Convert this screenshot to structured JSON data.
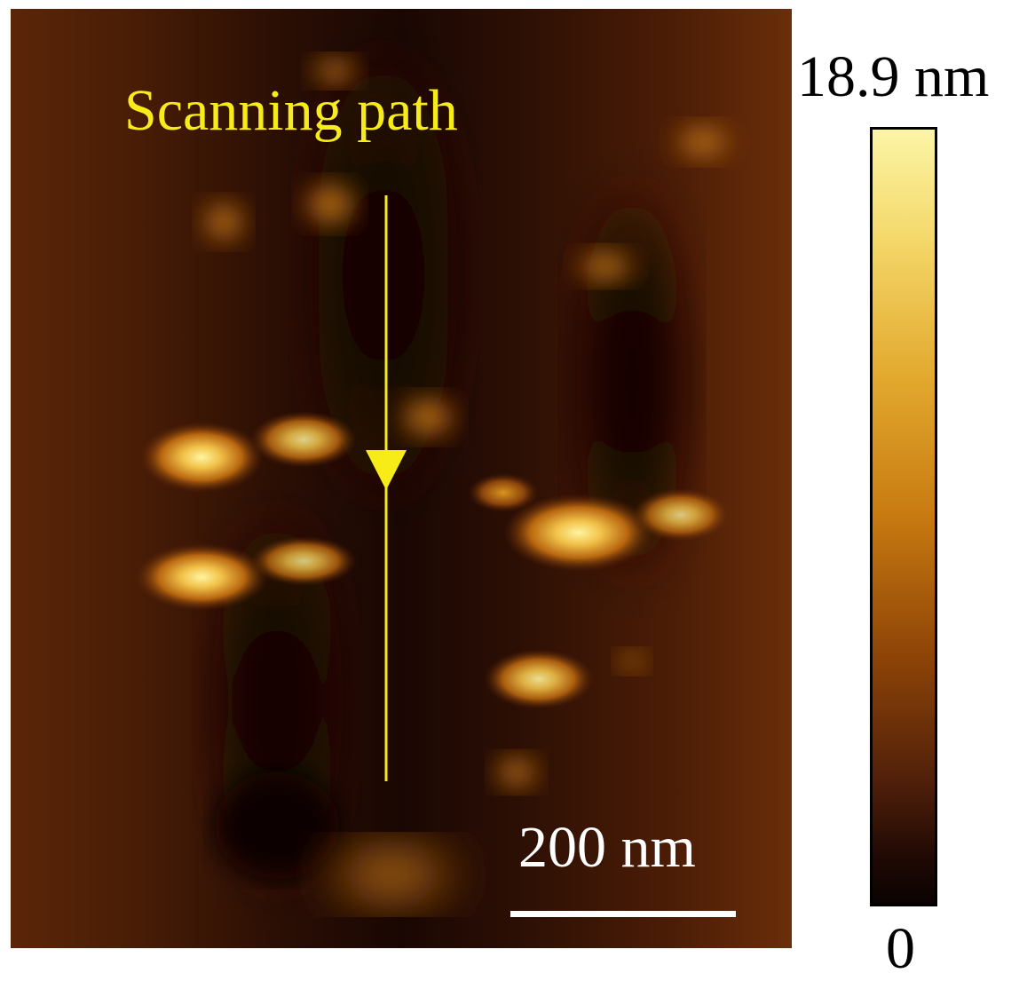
{
  "figure": {
    "annotation_label": "Scanning path",
    "scale_bar_label": "200 nm",
    "colorbar": {
      "max_label": "18.9 nm",
      "min_label": "0"
    },
    "colors": {
      "annotation": "#f7ec17",
      "scale_bar": "#ffffff",
      "substrate": "#3b1605",
      "feature_highlight": "#fff4a0"
    }
  }
}
